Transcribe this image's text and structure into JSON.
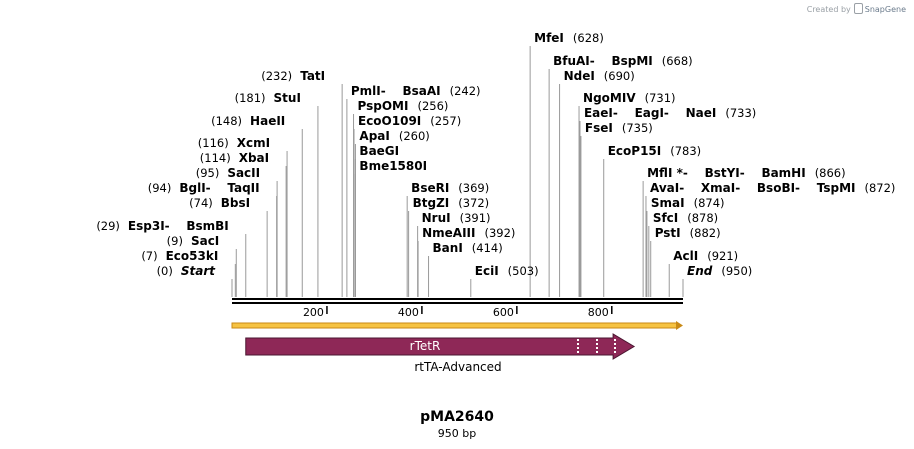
{
  "credit": {
    "prefix": "Created by",
    "brand": "SnapGene"
  },
  "plasmid": {
    "name": "pMA2640",
    "length_label": "950 bp",
    "length": 950
  },
  "ruler": {
    "ticks": [
      "200",
      "400",
      "600",
      "800"
    ],
    "tick_values": [
      200,
      400,
      600,
      800
    ]
  },
  "feature": {
    "label": "rTetR",
    "caption": "rtTA-Advanced",
    "start": 29,
    "end": 847,
    "color": "#8e2857"
  },
  "sites": [
    {
      "names": [
        "Start"
      ],
      "pos_text": "(0)",
      "pos": 0,
      "pos_side": "left",
      "italic": true
    },
    {
      "names": [
        "Eco53kI"
      ],
      "pos_text": "(7)",
      "pos": 7,
      "pos_side": "left"
    },
    {
      "names": [
        "SacI"
      ],
      "pos_text": "(9)",
      "pos": 9,
      "pos_side": "left"
    },
    {
      "names": [
        "Esp3I",
        "BsmBI"
      ],
      "pos_text": "(29)",
      "pos": 29,
      "pos_side": "left"
    },
    {
      "names": [
        "BbsI"
      ],
      "pos_text": "(74)",
      "pos": 74,
      "pos_side": "left"
    },
    {
      "names": [
        "BglI",
        "TaqII"
      ],
      "pos_text": "(94)",
      "pos": 94,
      "pos_side": "left"
    },
    {
      "names": [
        "SacII"
      ],
      "pos_text": "(95)",
      "pos": 95,
      "pos_side": "left"
    },
    {
      "names": [
        "XbaI"
      ],
      "pos_text": "(114)",
      "pos": 114,
      "pos_side": "left"
    },
    {
      "names": [
        "XcmI"
      ],
      "pos_text": "(116)",
      "pos": 116,
      "pos_side": "left"
    },
    {
      "names": [
        "HaeII"
      ],
      "pos_text": "(148)",
      "pos": 148,
      "pos_side": "left"
    },
    {
      "names": [
        "StuI"
      ],
      "pos_text": "(181)",
      "pos": 181,
      "pos_side": "left"
    },
    {
      "names": [
        "TatI"
      ],
      "pos_text": "(232)",
      "pos": 232,
      "pos_side": "left"
    },
    {
      "names": [
        "PmlI",
        "BsaAI"
      ],
      "pos_text": "(242)",
      "pos": 242,
      "pos_side": "right"
    },
    {
      "names": [
        "PspOMI"
      ],
      "pos_text": "(256)",
      "pos": 256,
      "pos_side": "right"
    },
    {
      "names": [
        "EcoO109I"
      ],
      "pos_text": "(257)",
      "pos": 257,
      "pos_side": "right"
    },
    {
      "names": [
        "ApaI"
      ],
      "pos_text": "(260)",
      "pos": 260,
      "pos_side": "right"
    },
    {
      "names": [
        "BaeGI"
      ],
      "pos_text": "",
      "pos": 260,
      "pos_side": "right"
    },
    {
      "names": [
        "Bme1580I"
      ],
      "pos_text": "",
      "pos": 260,
      "pos_side": "right"
    },
    {
      "names": [
        "BseRI"
      ],
      "pos_text": "(369)",
      "pos": 369,
      "pos_side": "right"
    },
    {
      "names": [
        "BtgZI"
      ],
      "pos_text": "(372)",
      "pos": 372,
      "pos_side": "right"
    },
    {
      "names": [
        "NruI"
      ],
      "pos_text": "(391)",
      "pos": 391,
      "pos_side": "right"
    },
    {
      "names": [
        "NmeAIII"
      ],
      "pos_text": "(392)",
      "pos": 392,
      "pos_side": "right"
    },
    {
      "names": [
        "BanI"
      ],
      "pos_text": "(414)",
      "pos": 414,
      "pos_side": "right"
    },
    {
      "names": [
        "EciI"
      ],
      "pos_text": "(503)",
      "pos": 503,
      "pos_side": "right"
    },
    {
      "names": [
        "MfeI"
      ],
      "pos_text": "(628)",
      "pos": 628,
      "pos_side": "right"
    },
    {
      "names": [
        "BfuAI",
        "BspMI"
      ],
      "pos_text": "(668)",
      "pos": 668,
      "pos_side": "right"
    },
    {
      "names": [
        "NdeI"
      ],
      "pos_text": "(690)",
      "pos": 690,
      "pos_side": "right"
    },
    {
      "names": [
        "NgoMIV"
      ],
      "pos_text": "(731)",
      "pos": 731,
      "pos_side": "right"
    },
    {
      "names": [
        "EaeI",
        "EagI",
        "NaeI"
      ],
      "pos_text": "(733)",
      "pos": 733,
      "pos_side": "right"
    },
    {
      "names": [
        "FseI"
      ],
      "pos_text": "(735)",
      "pos": 735,
      "pos_side": "right"
    },
    {
      "names": [
        "EcoP15I"
      ],
      "pos_text": "(783)",
      "pos": 783,
      "pos_side": "right"
    },
    {
      "names": [
        "MflI *",
        "BstYI",
        "BamHI"
      ],
      "pos_text": "(866)",
      "pos": 866,
      "pos_side": "right"
    },
    {
      "names": [
        "AvaI",
        "XmaI",
        "BsoBI",
        "TspMI"
      ],
      "pos_text": "(872)",
      "pos": 872,
      "pos_side": "right"
    },
    {
      "names": [
        "SmaI"
      ],
      "pos_text": "(874)",
      "pos": 874,
      "pos_side": "right"
    },
    {
      "names": [
        "SfcI"
      ],
      "pos_text": "(878)",
      "pos": 878,
      "pos_side": "right"
    },
    {
      "names": [
        "PstI"
      ],
      "pos_text": "(882)",
      "pos": 882,
      "pos_side": "right"
    },
    {
      "names": [
        "AclI"
      ],
      "pos_text": "(921)",
      "pos": 921,
      "pos_side": "right"
    },
    {
      "names": [
        "End"
      ],
      "pos_text": "(950)",
      "pos": 950,
      "pos_side": "right",
      "italic": true
    }
  ]
}
